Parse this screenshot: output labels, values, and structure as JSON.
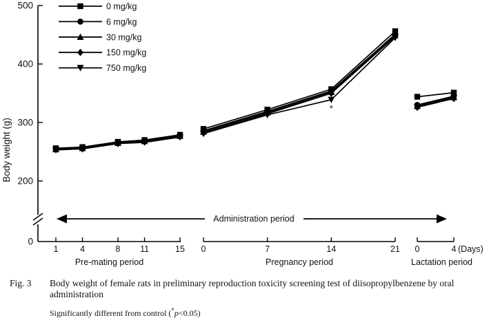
{
  "figure": {
    "fig_label": "Fig. 3",
    "caption": "Body weight of female rats in preliminary reproduction toxicity screening test of diisopropylbenzene by oral administration",
    "footnote_prefix": "Significantly different from control (",
    "footnote_star": "*",
    "footnote_p": "p",
    "footnote_tail": "<0.05)"
  },
  "chart_data": {
    "type": "line",
    "title": "",
    "ylabel": "Body weight (g)",
    "xlabel_unit": "(Days)",
    "ylim": [
      0,
      500
    ],
    "y_ticks": [
      500,
      400,
      300,
      200,
      0
    ],
    "y_axis_break": true,
    "grid": false,
    "legend_position": "top-left",
    "line_color": "#000000",
    "administration_arrow_label": "Administration period",
    "segments": [
      {
        "name": "Pre-mating period",
        "x": [
          1,
          4,
          8,
          11,
          15
        ]
      },
      {
        "name": "Pregnancy period",
        "x": [
          0,
          7,
          14,
          21
        ]
      },
      {
        "name": "Lactation period",
        "x": [
          0,
          4
        ]
      }
    ],
    "series": [
      {
        "name": "0 mg/kg",
        "marker": "square",
        "values_by_segment": [
          [
            256,
            258,
            267,
            270,
            279
          ],
          [
            289,
            322,
            357,
            456
          ],
          [
            344,
            351
          ]
        ]
      },
      {
        "name": "6 mg/kg",
        "marker": "circle",
        "values_by_segment": [
          [
            255,
            257,
            266,
            269,
            278
          ],
          [
            286,
            319,
            354,
            451
          ],
          [
            330,
            345
          ]
        ]
      },
      {
        "name": "30 mg/kg",
        "marker": "triangle-up",
        "values_by_segment": [
          [
            254,
            256,
            265,
            268,
            277
          ],
          [
            284,
            317,
            352,
            449
          ],
          [
            328,
            343
          ]
        ]
      },
      {
        "name": "150 mg/kg",
        "marker": "diamond",
        "values_by_segment": [
          [
            254,
            255,
            264,
            267,
            276
          ],
          [
            282,
            315,
            350,
            447
          ],
          [
            326,
            341
          ]
        ]
      },
      {
        "name": "750 mg/kg",
        "marker": "triangle-down",
        "values_by_segment": [
          [
            253,
            255,
            264,
            266,
            275
          ],
          [
            281,
            313,
            339,
            445
          ],
          [
            327,
            342
          ]
        ]
      }
    ],
    "annotation": {
      "symbol": "*",
      "segment_index": 1,
      "day": 14,
      "series": "750 mg/kg",
      "meaning": "Significantly different from control, p<0.05"
    }
  }
}
